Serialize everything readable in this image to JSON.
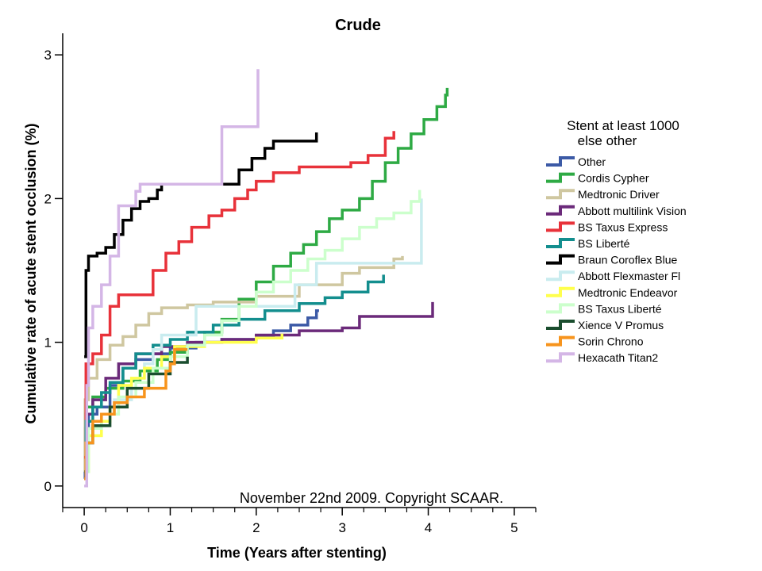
{
  "chart_data": {
    "type": "line",
    "title": "Crude",
    "xlabel": "Time (Years after stenting)",
    "ylabel": "Cumulative rate of acute stent occlusion (%)",
    "xlim": [
      -0.25,
      5.25
    ],
    "ylim": [
      -0.15,
      3.15
    ],
    "x_ticks": [
      0,
      1,
      2,
      3,
      4,
      5
    ],
    "x_tick_labels": [
      "0",
      "1",
      "2",
      "3",
      "4",
      "5"
    ],
    "x_minor_ticks": [
      -0.25,
      0.25,
      0.5,
      0.75,
      1.25,
      1.5,
      1.75,
      2.25,
      2.5,
      2.75,
      3.25,
      3.5,
      3.75,
      4.25,
      4.5,
      4.75,
      5.25
    ],
    "y_ticks": [
      0,
      1,
      2,
      3
    ],
    "y_tick_labels": [
      "0",
      "1",
      "2",
      "3"
    ],
    "legend_title": [
      "Stent at least 1000",
      "else other"
    ],
    "legend_position": "right",
    "annotation": "November 22nd 2009. Copyright SCAAR.",
    "series": [
      {
        "name": "Other",
        "color": "#3c5aa6",
        "points": [
          [
            0,
            0.05
          ],
          [
            0.01,
            0.4
          ],
          [
            0.05,
            0.5
          ],
          [
            0.15,
            0.55
          ],
          [
            0.3,
            0.7
          ],
          [
            0.45,
            0.82
          ],
          [
            0.6,
            0.88
          ],
          [
            0.8,
            0.92
          ],
          [
            1.0,
            0.96
          ],
          [
            1.3,
            1.0
          ],
          [
            1.6,
            1.02
          ],
          [
            2.0,
            1.04
          ],
          [
            2.2,
            1.08
          ],
          [
            2.4,
            1.12
          ],
          [
            2.6,
            1.17
          ],
          [
            2.7,
            1.22
          ],
          [
            2.73,
            1.22
          ]
        ]
      },
      {
        "name": "Cordis Cypher",
        "color": "#2eaa44",
        "points": [
          [
            0,
            0.1
          ],
          [
            0.02,
            0.55
          ],
          [
            0.1,
            0.62
          ],
          [
            0.25,
            0.68
          ],
          [
            0.45,
            0.73
          ],
          [
            0.65,
            0.8
          ],
          [
            0.85,
            0.88
          ],
          [
            1.0,
            0.93
          ],
          [
            1.2,
            0.99
          ],
          [
            1.4,
            1.07
          ],
          [
            1.6,
            1.16
          ],
          [
            1.8,
            1.3
          ],
          [
            2.0,
            1.42
          ],
          [
            2.2,
            1.53
          ],
          [
            2.4,
            1.62
          ],
          [
            2.55,
            1.68
          ],
          [
            2.7,
            1.77
          ],
          [
            2.85,
            1.86
          ],
          [
            3.0,
            1.92
          ],
          [
            3.2,
            2.0
          ],
          [
            3.35,
            2.12
          ],
          [
            3.5,
            2.25
          ],
          [
            3.65,
            2.35
          ],
          [
            3.8,
            2.45
          ],
          [
            3.95,
            2.55
          ],
          [
            4.1,
            2.64
          ],
          [
            4.2,
            2.72
          ],
          [
            4.22,
            2.77
          ]
        ]
      },
      {
        "name": "Medtronic Driver",
        "color": "#cfc7a0",
        "points": [
          [
            0,
            0.1
          ],
          [
            0.01,
            0.6
          ],
          [
            0.05,
            0.75
          ],
          [
            0.15,
            0.88
          ],
          [
            0.3,
            0.98
          ],
          [
            0.45,
            1.04
          ],
          [
            0.6,
            1.12
          ],
          [
            0.75,
            1.2
          ],
          [
            0.9,
            1.24
          ],
          [
            1.2,
            1.26
          ],
          [
            1.5,
            1.28
          ],
          [
            2.0,
            1.32
          ],
          [
            2.5,
            1.4
          ],
          [
            3.0,
            1.48
          ],
          [
            3.2,
            1.52
          ],
          [
            3.6,
            1.58
          ],
          [
            3.7,
            1.6
          ]
        ]
      },
      {
        "name": "Abbott multilink Vision",
        "color": "#6b2a7a",
        "points": [
          [
            0,
            0.1
          ],
          [
            0.02,
            0.5
          ],
          [
            0.1,
            0.6
          ],
          [
            0.25,
            0.75
          ],
          [
            0.4,
            0.85
          ],
          [
            0.6,
            0.92
          ],
          [
            0.9,
            0.97
          ],
          [
            1.2,
            1.0
          ],
          [
            1.6,
            1.02
          ],
          [
            2.0,
            1.05
          ],
          [
            2.5,
            1.08
          ],
          [
            3.0,
            1.1
          ],
          [
            3.2,
            1.18
          ],
          [
            3.8,
            1.18
          ],
          [
            4.05,
            1.28
          ]
        ]
      },
      {
        "name": "BS Taxus Express",
        "color": "#e8323a",
        "points": [
          [
            0,
            0.2
          ],
          [
            0.02,
            0.85
          ],
          [
            0.1,
            0.92
          ],
          [
            0.2,
            1.05
          ],
          [
            0.3,
            1.25
          ],
          [
            0.4,
            1.33
          ],
          [
            0.7,
            1.33
          ],
          [
            0.8,
            1.5
          ],
          [
            0.95,
            1.62
          ],
          [
            1.1,
            1.7
          ],
          [
            1.25,
            1.8
          ],
          [
            1.45,
            1.88
          ],
          [
            1.6,
            1.92
          ],
          [
            1.75,
            2.0
          ],
          [
            1.9,
            2.06
          ],
          [
            2.0,
            2.12
          ],
          [
            2.2,
            2.18
          ],
          [
            2.5,
            2.22
          ],
          [
            3.1,
            2.25
          ],
          [
            3.3,
            2.3
          ],
          [
            3.5,
            2.42
          ],
          [
            3.6,
            2.47
          ]
        ]
      },
      {
        "name": "BS Liberté",
        "color": "#138e8e",
        "points": [
          [
            0,
            0.1
          ],
          [
            0.02,
            0.45
          ],
          [
            0.1,
            0.55
          ],
          [
            0.2,
            0.65
          ],
          [
            0.3,
            0.72
          ],
          [
            0.45,
            0.82
          ],
          [
            0.6,
            0.92
          ],
          [
            0.8,
            0.98
          ],
          [
            1.0,
            1.02
          ],
          [
            1.2,
            1.07
          ],
          [
            1.5,
            1.12
          ],
          [
            1.8,
            1.16
          ],
          [
            2.1,
            1.22
          ],
          [
            2.5,
            1.27
          ],
          [
            2.8,
            1.31
          ],
          [
            3.0,
            1.35
          ],
          [
            3.3,
            1.42
          ],
          [
            3.48,
            1.47
          ]
        ]
      },
      {
        "name": "Braun Coroflex Blue",
        "color": "#000000",
        "points": [
          [
            0,
            0.9
          ],
          [
            0.02,
            1.5
          ],
          [
            0.05,
            1.6
          ],
          [
            0.15,
            1.62
          ],
          [
            0.25,
            1.66
          ],
          [
            0.35,
            1.75
          ],
          [
            0.45,
            1.85
          ],
          [
            0.55,
            1.93
          ],
          [
            0.65,
            1.98
          ],
          [
            0.75,
            2.0
          ],
          [
            0.85,
            2.06
          ],
          [
            0.9,
            2.1
          ],
          [
            1.6,
            2.1
          ],
          [
            1.8,
            2.2
          ],
          [
            1.95,
            2.28
          ],
          [
            2.1,
            2.35
          ],
          [
            2.2,
            2.4
          ],
          [
            2.5,
            2.4
          ],
          [
            2.7,
            2.46
          ]
        ]
      },
      {
        "name": "Abbott Flexmaster Fl",
        "color": "#c9ecef",
        "points": [
          [
            0,
            0.1
          ],
          [
            0.05,
            0.35
          ],
          [
            0.2,
            0.5
          ],
          [
            0.35,
            0.6
          ],
          [
            0.55,
            0.75
          ],
          [
            0.7,
            0.85
          ],
          [
            0.8,
            0.95
          ],
          [
            0.9,
            1.05
          ],
          [
            1.3,
            1.05
          ],
          [
            1.3,
            1.25
          ],
          [
            2.4,
            1.25
          ],
          [
            2.45,
            1.4
          ],
          [
            2.65,
            1.4
          ],
          [
            2.7,
            1.55
          ],
          [
            3.9,
            1.55
          ],
          [
            3.92,
            2.0
          ]
        ]
      },
      {
        "name": "Medtronic Endeavor",
        "color": "#ffff4d",
        "points": [
          [
            0,
            0.1
          ],
          [
            0.05,
            0.35
          ],
          [
            0.2,
            0.45
          ],
          [
            0.3,
            0.55
          ],
          [
            0.4,
            0.7
          ],
          [
            0.55,
            0.75
          ],
          [
            0.7,
            0.82
          ],
          [
            0.9,
            0.9
          ],
          [
            1.05,
            0.97
          ],
          [
            1.4,
            1.0
          ],
          [
            2.0,
            1.03
          ],
          [
            2.3,
            1.06
          ]
        ]
      },
      {
        "name": "BS Taxus Liberté",
        "color": "#ccffcc",
        "points": [
          [
            0,
            0.1
          ],
          [
            0.05,
            0.4
          ],
          [
            0.2,
            0.5
          ],
          [
            0.4,
            0.62
          ],
          [
            0.6,
            0.72
          ],
          [
            0.8,
            0.82
          ],
          [
            1.0,
            0.9
          ],
          [
            1.2,
            0.98
          ],
          [
            1.4,
            1.05
          ],
          [
            1.6,
            1.15
          ],
          [
            1.8,
            1.25
          ],
          [
            2.0,
            1.35
          ],
          [
            2.2,
            1.42
          ],
          [
            2.4,
            1.5
          ],
          [
            2.6,
            1.58
          ],
          [
            2.8,
            1.64
          ],
          [
            3.0,
            1.72
          ],
          [
            3.2,
            1.8
          ],
          [
            3.4,
            1.86
          ],
          [
            3.6,
            1.9
          ],
          [
            3.8,
            1.98
          ],
          [
            3.9,
            2.06
          ]
        ]
      },
      {
        "name": "Xience V Promus",
        "color": "#1a4d2e",
        "points": [
          [
            0,
            0.1
          ],
          [
            0.03,
            0.3
          ],
          [
            0.1,
            0.42
          ],
          [
            0.3,
            0.55
          ],
          [
            0.5,
            0.68
          ],
          [
            0.75,
            0.78
          ],
          [
            1.0,
            0.86
          ],
          [
            1.2,
            0.9
          ]
        ]
      },
      {
        "name": "Sorin Chrono",
        "color": "#f7941d",
        "points": [
          [
            0,
            0.05
          ],
          [
            0.02,
            0.3
          ],
          [
            0.1,
            0.45
          ],
          [
            0.2,
            0.5
          ],
          [
            0.35,
            0.58
          ],
          [
            0.5,
            0.62
          ],
          [
            0.7,
            0.68
          ],
          [
            0.95,
            0.68
          ],
          [
            0.95,
            0.8
          ],
          [
            1.0,
            0.85
          ],
          [
            1.05,
            0.95
          ],
          [
            1.2,
            0.95
          ]
        ]
      },
      {
        "name": "Hexacath Titan2",
        "color": "#d4b6e6",
        "points": [
          [
            0,
            0.0
          ],
          [
            0.03,
            0.7
          ],
          [
            0.05,
            1.1
          ],
          [
            0.1,
            1.25
          ],
          [
            0.2,
            1.4
          ],
          [
            0.3,
            1.6
          ],
          [
            0.4,
            1.95
          ],
          [
            0.6,
            2.05
          ],
          [
            0.65,
            2.1
          ],
          [
            1.6,
            2.1
          ],
          [
            1.6,
            2.5
          ],
          [
            2.0,
            2.5
          ],
          [
            2.02,
            2.9
          ]
        ]
      }
    ]
  }
}
